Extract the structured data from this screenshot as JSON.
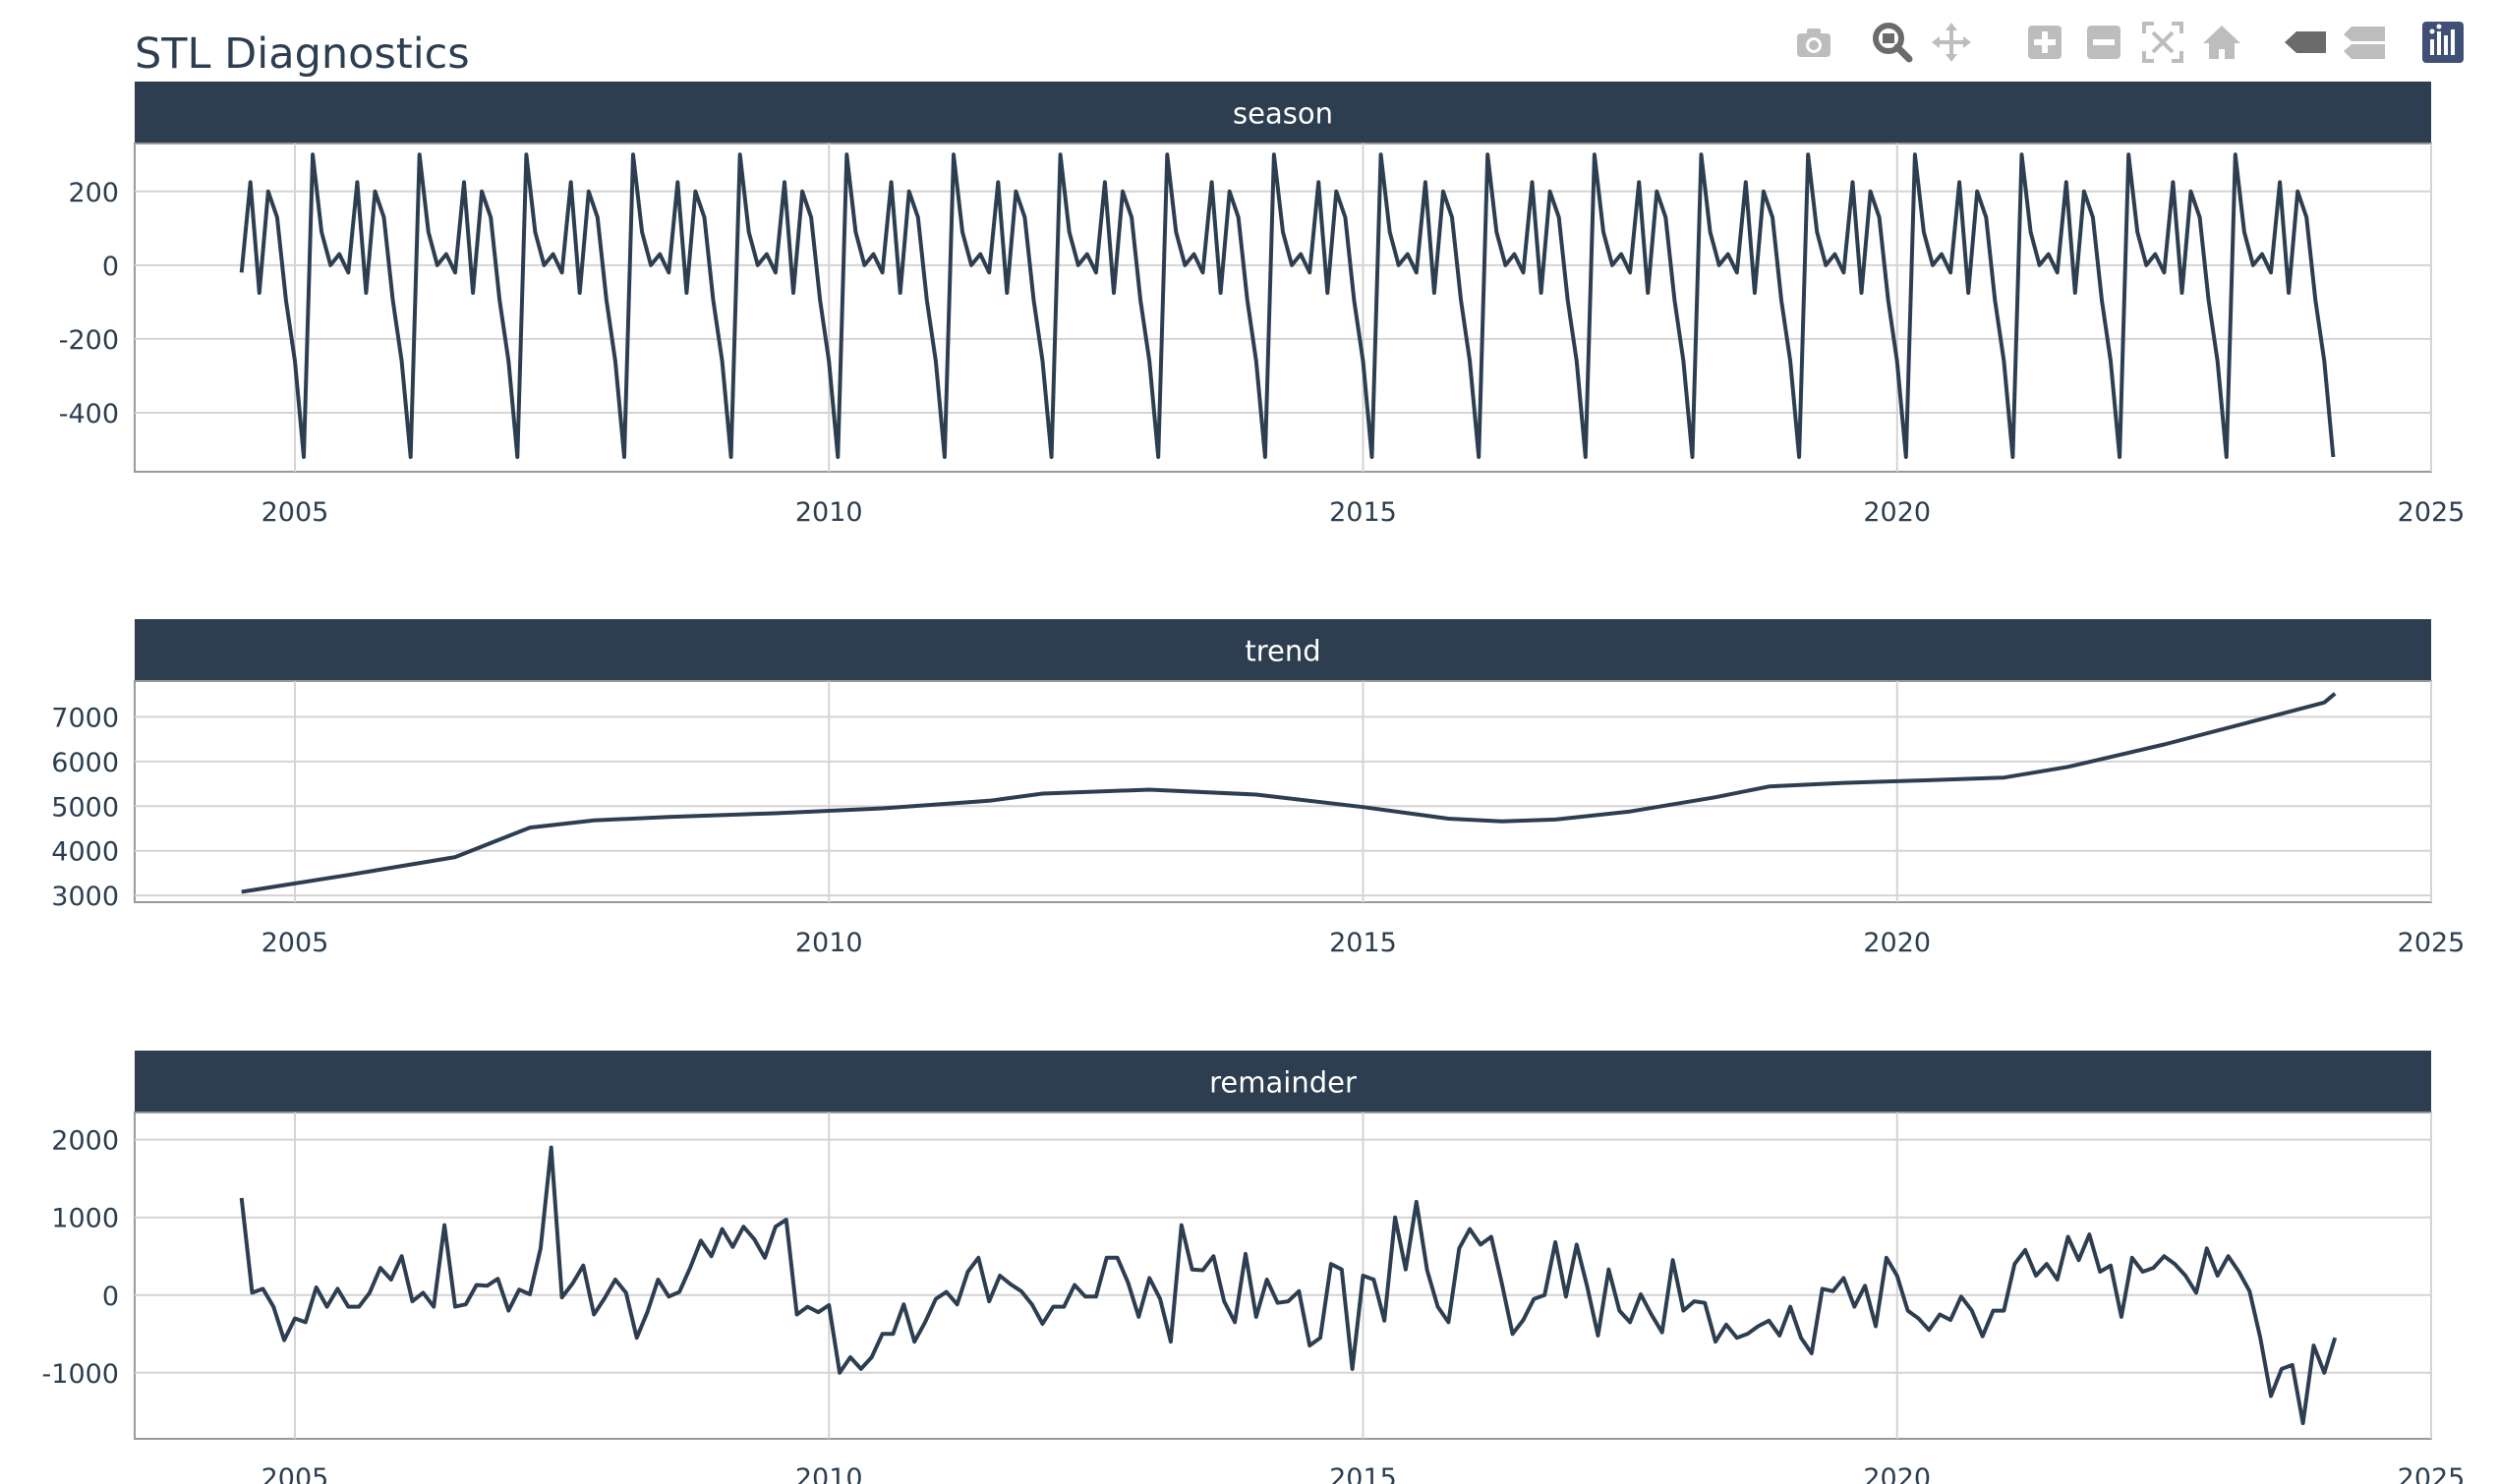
{
  "title": "STL Diagnostics",
  "toolbar": [
    {
      "name": "camera-icon",
      "label": "Download plot as a png"
    },
    {
      "name": "zoom-icon",
      "label": "Zoom"
    },
    {
      "name": "pan-icon",
      "label": "Pan"
    },
    {
      "name": "zoom-in-icon",
      "label": "Zoom in"
    },
    {
      "name": "zoom-out-icon",
      "label": "Zoom out"
    },
    {
      "name": "autoscale-icon",
      "label": "Autoscale"
    },
    {
      "name": "home-icon",
      "label": "Reset axes"
    },
    {
      "name": "hover-closest-icon",
      "label": "Show closest data on hover"
    },
    {
      "name": "hover-compare-icon",
      "label": "Compare data on hover"
    },
    {
      "name": "plotly-logo-icon",
      "label": "Produced with Plotly"
    }
  ],
  "colors": {
    "line": "#2c3e50",
    "strip": "#2c3e50",
    "strip_text": "#ffffff",
    "grid": "#d4d4d4",
    "axis_text": "#2c3e50",
    "toolbar_icon": "#bdbdbd",
    "toolbar_active": "#6b6b6b",
    "plotly_logo": "#3f4f75"
  },
  "chart_data": [
    {
      "type": "line",
      "title": "season",
      "xlim": [
        2003.5,
        2025.0
      ],
      "ylim": [
        -560,
        330
      ],
      "yticks": [
        -400,
        -200,
        0,
        200
      ],
      "xticks": [
        2005,
        2010,
        2015,
        2020,
        2025
      ],
      "grid": true,
      "x_start": 2004.5,
      "x_step": 0.0833333,
      "pattern": [
        -20,
        225,
        -75,
        200,
        130,
        -95,
        -260,
        -520,
        300,
        90,
        0,
        30,
        -20,
        225,
        -75,
        200,
        130,
        -95,
        -260,
        -520,
        300,
        90,
        0,
        30
      ],
      "n": 236
    },
    {
      "type": "line",
      "title": "trend",
      "xlim": [
        2003.5,
        2025.0
      ],
      "ylim": [
        2850,
        7800
      ],
      "yticks": [
        3000,
        4000,
        5000,
        6000,
        7000
      ],
      "xticks": [
        2005,
        2010,
        2015,
        2020,
        2025
      ],
      "grid": true,
      "points": [
        [
          2004.5,
          3080
        ],
        [
          2005.5,
          3460
        ],
        [
          2006.5,
          3860
        ],
        [
          2007.2,
          4520
        ],
        [
          2007.8,
          4680
        ],
        [
          2008.5,
          4760
        ],
        [
          2009.5,
          4840
        ],
        [
          2010.5,
          4950
        ],
        [
          2011.5,
          5120
        ],
        [
          2012.0,
          5280
        ],
        [
          2013.0,
          5370
        ],
        [
          2014.0,
          5260
        ],
        [
          2015.0,
          4980
        ],
        [
          2015.8,
          4720
        ],
        [
          2016.3,
          4660
        ],
        [
          2016.8,
          4700
        ],
        [
          2017.5,
          4880
        ],
        [
          2018.3,
          5200
        ],
        [
          2018.8,
          5440
        ],
        [
          2019.5,
          5520
        ],
        [
          2020.3,
          5580
        ],
        [
          2021.0,
          5640
        ],
        [
          2021.6,
          5880
        ],
        [
          2022.5,
          6380
        ],
        [
          2023.3,
          6880
        ],
        [
          2024.0,
          7320
        ],
        [
          2024.1,
          7520
        ]
      ]
    },
    {
      "type": "line",
      "title": "remainder",
      "xlim": [
        2003.5,
        2025.0
      ],
      "ylim": [
        -1850,
        2350
      ],
      "yticks": [
        -1000,
        0,
        1000,
        2000
      ],
      "xticks": [
        2005,
        2010,
        2015,
        2020,
        2025
      ],
      "grid": true,
      "points": [
        [
          2004.5,
          1250
        ],
        [
          2004.6,
          30
        ],
        [
          2004.7,
          80
        ],
        [
          2004.8,
          -150
        ],
        [
          2004.9,
          -580
        ],
        [
          2005.0,
          -300
        ],
        [
          2005.1,
          -350
        ],
        [
          2005.2,
          100
        ],
        [
          2005.3,
          -150
        ],
        [
          2005.4,
          80
        ],
        [
          2005.5,
          -150
        ],
        [
          2005.6,
          -150
        ],
        [
          2005.7,
          30
        ],
        [
          2005.8,
          350
        ],
        [
          2005.9,
          200
        ],
        [
          2006.0,
          500
        ],
        [
          2006.1,
          -80
        ],
        [
          2006.2,
          30
        ],
        [
          2006.3,
          -150
        ],
        [
          2006.4,
          900
        ],
        [
          2006.5,
          -150
        ],
        [
          2006.6,
          -120
        ],
        [
          2006.7,
          130
        ],
        [
          2006.8,
          120
        ],
        [
          2006.9,
          210
        ],
        [
          2007.0,
          -200
        ],
        [
          2007.1,
          70
        ],
        [
          2007.2,
          10
        ],
        [
          2007.3,
          600
        ],
        [
          2007.4,
          1900
        ],
        [
          2007.5,
          -30
        ],
        [
          2007.6,
          150
        ],
        [
          2007.7,
          380
        ],
        [
          2007.8,
          -250
        ],
        [
          2007.9,
          -40
        ],
        [
          2008.0,
          200
        ],
        [
          2008.1,
          30
        ],
        [
          2008.2,
          -550
        ],
        [
          2008.3,
          -220
        ],
        [
          2008.4,
          200
        ],
        [
          2008.5,
          -20
        ],
        [
          2008.6,
          40
        ],
        [
          2008.7,
          350
        ],
        [
          2008.8,
          700
        ],
        [
          2008.9,
          500
        ],
        [
          2009.0,
          850
        ],
        [
          2009.1,
          620
        ],
        [
          2009.2,
          880
        ],
        [
          2009.3,
          720
        ],
        [
          2009.4,
          480
        ],
        [
          2009.5,
          880
        ],
        [
          2009.6,
          970
        ],
        [
          2009.7,
          -250
        ],
        [
          2009.8,
          -150
        ],
        [
          2009.9,
          -220
        ],
        [
          2010.0,
          -130
        ],
        [
          2010.1,
          -1000
        ],
        [
          2010.2,
          -800
        ],
        [
          2010.3,
          -950
        ],
        [
          2010.4,
          -800
        ],
        [
          2010.5,
          -500
        ],
        [
          2010.6,
          -500
        ],
        [
          2010.7,
          -120
        ],
        [
          2010.8,
          -600
        ],
        [
          2010.9,
          -350
        ],
        [
          2011.0,
          -50
        ],
        [
          2011.1,
          40
        ],
        [
          2011.2,
          -120
        ],
        [
          2011.3,
          300
        ],
        [
          2011.4,
          480
        ],
        [
          2011.5,
          -80
        ],
        [
          2011.6,
          250
        ],
        [
          2011.7,
          140
        ],
        [
          2011.8,
          50
        ],
        [
          2011.9,
          -120
        ],
        [
          2012.0,
          -370
        ],
        [
          2012.1,
          -150
        ],
        [
          2012.2,
          -150
        ],
        [
          2012.3,
          130
        ],
        [
          2012.4,
          -20
        ],
        [
          2012.5,
          -20
        ],
        [
          2012.6,
          480
        ],
        [
          2012.7,
          480
        ],
        [
          2012.8,
          160
        ],
        [
          2012.9,
          -280
        ],
        [
          2013.0,
          220
        ],
        [
          2013.1,
          -50
        ],
        [
          2013.2,
          -600
        ],
        [
          2013.3,
          900
        ],
        [
          2013.4,
          330
        ],
        [
          2013.5,
          320
        ],
        [
          2013.6,
          500
        ],
        [
          2013.7,
          -80
        ],
        [
          2013.8,
          -350
        ],
        [
          2013.9,
          530
        ],
        [
          2014.0,
          -280
        ],
        [
          2014.1,
          200
        ],
        [
          2014.2,
          -100
        ],
        [
          2014.3,
          -80
        ],
        [
          2014.4,
          50
        ],
        [
          2014.5,
          -650
        ],
        [
          2014.6,
          -550
        ],
        [
          2014.7,
          400
        ],
        [
          2014.8,
          330
        ],
        [
          2014.9,
          -950
        ],
        [
          2015.0,
          250
        ],
        [
          2015.1,
          200
        ],
        [
          2015.2,
          -330
        ],
        [
          2015.3,
          1000
        ],
        [
          2015.4,
          330
        ],
        [
          2015.5,
          1200
        ],
        [
          2015.6,
          320
        ],
        [
          2015.7,
          -150
        ],
        [
          2015.8,
          -350
        ],
        [
          2015.9,
          600
        ],
        [
          2016.0,
          850
        ],
        [
          2016.1,
          650
        ],
        [
          2016.2,
          750
        ],
        [
          2016.3,
          150
        ],
        [
          2016.4,
          -500
        ],
        [
          2016.5,
          -320
        ],
        [
          2016.6,
          -50
        ],
        [
          2016.7,
          0
        ],
        [
          2016.8,
          680
        ],
        [
          2016.9,
          -20
        ],
        [
          2017.0,
          650
        ],
        [
          2017.1,
          100
        ],
        [
          2017.2,
          -520
        ],
        [
          2017.3,
          330
        ],
        [
          2017.4,
          -200
        ],
        [
          2017.5,
          -350
        ],
        [
          2017.6,
          10
        ],
        [
          2017.7,
          -250
        ],
        [
          2017.8,
          -480
        ],
        [
          2017.9,
          450
        ],
        [
          2018.0,
          -200
        ],
        [
          2018.1,
          -80
        ],
        [
          2018.2,
          -100
        ],
        [
          2018.3,
          -600
        ],
        [
          2018.4,
          -380
        ],
        [
          2018.5,
          -550
        ],
        [
          2018.6,
          -500
        ],
        [
          2018.7,
          -400
        ],
        [
          2018.8,
          -330
        ],
        [
          2018.9,
          -520
        ],
        [
          2019.0,
          -150
        ],
        [
          2019.1,
          -550
        ],
        [
          2019.2,
          -750
        ],
        [
          2019.3,
          80
        ],
        [
          2019.4,
          50
        ],
        [
          2019.5,
          220
        ],
        [
          2019.6,
          -150
        ],
        [
          2019.7,
          120
        ],
        [
          2019.8,
          -400
        ],
        [
          2019.9,
          480
        ],
        [
          2020.0,
          250
        ],
        [
          2020.1,
          -200
        ],
        [
          2020.2,
          -300
        ],
        [
          2020.3,
          -450
        ],
        [
          2020.4,
          -250
        ],
        [
          2020.5,
          -320
        ],
        [
          2020.6,
          -20
        ],
        [
          2020.7,
          -200
        ],
        [
          2020.8,
          -530
        ],
        [
          2020.9,
          -200
        ],
        [
          2021.0,
          -200
        ],
        [
          2021.1,
          400
        ],
        [
          2021.2,
          580
        ],
        [
          2021.3,
          250
        ],
        [
          2021.4,
          400
        ],
        [
          2021.5,
          200
        ],
        [
          2021.6,
          750
        ],
        [
          2021.7,
          450
        ],
        [
          2021.8,
          780
        ],
        [
          2021.9,
          300
        ],
        [
          2022.0,
          380
        ],
        [
          2022.1,
          -280
        ],
        [
          2022.2,
          480
        ],
        [
          2022.3,
          300
        ],
        [
          2022.4,
          350
        ],
        [
          2022.5,
          500
        ],
        [
          2022.6,
          400
        ],
        [
          2022.7,
          250
        ],
        [
          2022.8,
          30
        ],
        [
          2022.9,
          600
        ],
        [
          2023.0,
          250
        ],
        [
          2023.1,
          500
        ],
        [
          2023.2,
          300
        ],
        [
          2023.3,
          50
        ],
        [
          2023.4,
          -550
        ],
        [
          2023.5,
          -1300
        ],
        [
          2023.6,
          -950
        ],
        [
          2023.7,
          -900
        ],
        [
          2023.8,
          -1650
        ],
        [
          2023.9,
          -650
        ],
        [
          2024.0,
          -1000
        ],
        [
          2024.1,
          -550
        ]
      ]
    }
  ]
}
